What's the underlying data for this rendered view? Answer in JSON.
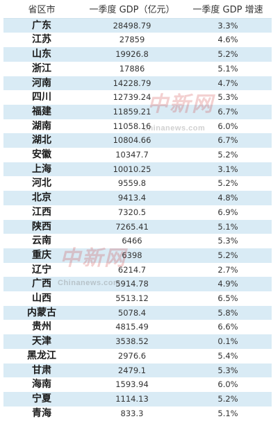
{
  "table": {
    "headers": [
      "省区市",
      "一季度 GDP（亿元）",
      "一季度 GDP 增速"
    ],
    "rows": [
      [
        "广东",
        "28498.79",
        "3.3%"
      ],
      [
        "江苏",
        "27859",
        "4.6%"
      ],
      [
        "山东",
        "19926.8",
        "5.2%"
      ],
      [
        "浙江",
        "17886",
        "5.1%"
      ],
      [
        "河南",
        "14228.79",
        "4.7%"
      ],
      [
        "四川",
        "12739.24",
        "5.3%"
      ],
      [
        "福建",
        "11859.21",
        "6.7%"
      ],
      [
        "湖南",
        "11058.16",
        "6.0%"
      ],
      [
        "湖北",
        "10804.66",
        "6.7%"
      ],
      [
        "安徽",
        "10347.7",
        "5.2%"
      ],
      [
        "上海",
        "10010.25",
        "3.1%"
      ],
      [
        "河北",
        "9559.8",
        "5.2%"
      ],
      [
        "北京",
        "9413.4",
        "4.8%"
      ],
      [
        "江西",
        "7320.5",
        "6.9%"
      ],
      [
        "陕西",
        "7265.41",
        "5.1%"
      ],
      [
        "云南",
        "6466",
        "5.3%"
      ],
      [
        "重庆",
        "6398",
        "5.2%"
      ],
      [
        "辽宁",
        "6214.7",
        "2.7%"
      ],
      [
        "广西",
        "5914.78",
        "4.9%"
      ],
      [
        "山西",
        "5513.12",
        "6.5%"
      ],
      [
        "内蒙古",
        "5078.4",
        "5.8%"
      ],
      [
        "贵州",
        "4815.49",
        "6.6%"
      ],
      [
        "天津",
        "3538.52",
        "0.1%"
      ],
      [
        "黑龙江",
        "2976.6",
        "5.4%"
      ],
      [
        "甘肃",
        "2479.1",
        "5.3%"
      ],
      [
        "海南",
        "1593.94",
        "6.0%"
      ],
      [
        "宁夏",
        "1114.13",
        "5.2%"
      ],
      [
        "青海",
        "833.3",
        "5.1%"
      ]
    ]
  },
  "watermark": {
    "main": "中新网",
    "sub": "Chinanews.com"
  }
}
